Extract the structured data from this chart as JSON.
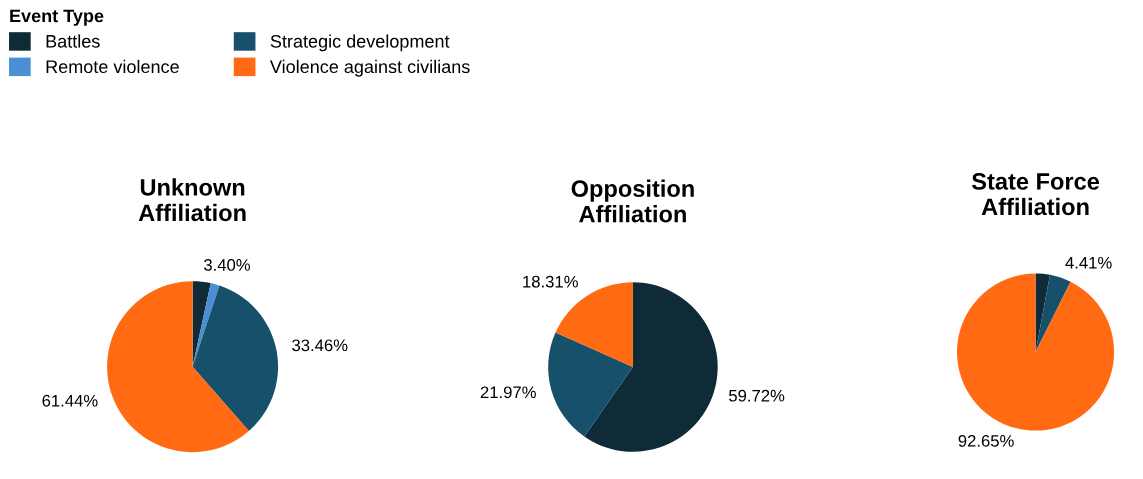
{
  "chart_data": [
    {
      "type": "pie",
      "title": "Unknown\nAffiliation",
      "categories": [
        "Battles",
        "Remote violence",
        "Strategic development",
        "Violence against civilians"
      ],
      "values": [
        3.4,
        1.7,
        33.46,
        61.44
      ],
      "colors": [
        "#0f2b38",
        "#4a8fd4",
        "#17506a",
        "#ff6a13"
      ],
      "value_labels": [
        "3.40%",
        null,
        "33.46%",
        "61.44%"
      ],
      "legend": "top",
      "legend_title": "Event Type"
    },
    {
      "type": "pie",
      "title": "Opposition\nAffiliation",
      "categories": [
        null,
        null,
        null,
        null
      ],
      "values": [
        59.72,
        0,
        21.97,
        18.31
      ],
      "colors": [
        "#0f2b38",
        "#4a8fd4",
        "#17506a",
        "#ff6a13"
      ],
      "value_labels": [
        "59.72%",
        null,
        "21.97%",
        "18.31%"
      ]
    },
    {
      "type": "pie",
      "title": "State Force\nAffiliation",
      "categories": [
        null,
        null,
        null,
        null
      ],
      "values": [
        2.94,
        0,
        4.41,
        92.65
      ],
      "colors": [
        "#0f2b38",
        "#4a8fd4",
        "#17506a",
        "#ff6a13"
      ],
      "value_labels": [
        null,
        null,
        "4.41%",
        "92.65%"
      ]
    }
  ]
}
